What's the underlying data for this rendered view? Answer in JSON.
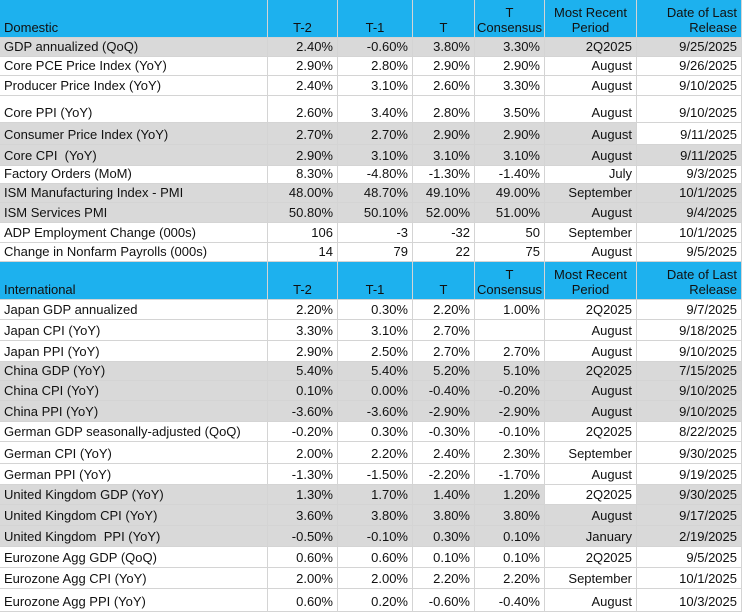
{
  "sections": [
    {
      "header": [
        "Domestic",
        "T-2",
        "T-1",
        "T",
        "T Consensus",
        "Most Recent Period",
        "Date of Last Release"
      ],
      "rows": [
        [
          "GDP annualized (QoQ)",
          "2.40%",
          "-0.60%",
          "3.80%",
          "3.30%",
          "2Q2025",
          "9/25/2025"
        ],
        [
          "Core PCE Price Index (YoY)",
          "2.90%",
          "2.80%",
          "2.90%",
          "2.90%",
          "August",
          "9/26/2025"
        ],
        [
          "Producer Price Index (YoY)",
          "2.40%",
          "3.10%",
          "2.60%",
          "3.30%",
          "August",
          "9/10/2025"
        ],
        [
          "Core PPI (YoY)",
          "2.60%",
          "3.40%",
          "2.80%",
          "3.50%",
          "August",
          "9/10/2025"
        ],
        [
          "Consumer Price Index (YoY)",
          "2.70%",
          "2.70%",
          "2.90%",
          "2.90%",
          "August",
          "9/11/2025"
        ],
        [
          "Core CPI  (YoY)",
          "2.90%",
          "3.10%",
          "3.10%",
          "3.10%",
          "August",
          "9/11/2025"
        ],
        [
          "Factory Orders (MoM)",
          "8.30%",
          "-4.80%",
          "-1.30%",
          "-1.40%",
          "July",
          "9/3/2025"
        ],
        [
          "ISM Manufacturing Index - PMI",
          "48.00%",
          "48.70%",
          "49.10%",
          "49.00%",
          "September",
          "10/1/2025"
        ],
        [
          "ISM Services PMI",
          "50.80%",
          "50.10%",
          "52.00%",
          "51.00%",
          "August",
          "9/4/2025"
        ],
        [
          "ADP Employment Change (000s)",
          "106",
          "-3",
          "-32",
          "50",
          "September",
          "10/1/2025"
        ],
        [
          "Change in Nonfarm Payrolls (000s)",
          "14",
          "79",
          "22",
          "75",
          "August",
          "9/5/2025"
        ]
      ]
    },
    {
      "header": [
        "International",
        "T-2",
        "T-1",
        "T",
        "T Consensus",
        "Most Recent Period",
        "Date of Last Release"
      ],
      "rows": [
        [
          "Japan GDP annualized",
          "2.20%",
          "0.30%",
          "2.20%",
          "1.00%",
          "2Q2025",
          "9/7/2025"
        ],
        [
          "Japan CPI (YoY)",
          "3.30%",
          "3.10%",
          "2.70%",
          null,
          "August",
          "9/18/2025"
        ],
        [
          "Japan PPI (YoY)",
          "2.90%",
          "2.50%",
          "2.70%",
          "2.70%",
          "August",
          "9/10/2025"
        ],
        [
          "China GDP (YoY)",
          "5.40%",
          "5.40%",
          "5.20%",
          "5.10%",
          "2Q2025",
          "7/15/2025"
        ],
        [
          "China CPI (YoY)",
          "0.10%",
          "0.00%",
          "-0.40%",
          "-0.20%",
          "August",
          "9/10/2025"
        ],
        [
          "China PPI (YoY)",
          "-3.60%",
          "-3.60%",
          "-2.90%",
          "-2.90%",
          "August",
          "9/10/2025"
        ],
        [
          "German GDP seasonally-adjusted (QoQ)",
          "-0.20%",
          "0.30%",
          "-0.30%",
          "-0.10%",
          "2Q2025",
          "8/22/2025"
        ],
        [
          "German CPI (YoY)",
          "2.00%",
          "2.20%",
          "2.40%",
          "2.30%",
          "September",
          "9/30/2025"
        ],
        [
          "German PPI (YoY)",
          "-1.30%",
          "-1.50%",
          "-2.20%",
          "-1.70%",
          "August",
          "9/19/2025"
        ],
        [
          "United Kingdom GDP (YoY)",
          "1.30%",
          "1.70%",
          "1.40%",
          "1.20%",
          "2Q2025",
          "9/30/2025"
        ],
        [
          "United Kingdom CPI (YoY)",
          "3.60%",
          "3.80%",
          "3.80%",
          "3.80%",
          "August",
          "9/17/2025"
        ],
        [
          "United Kingdom  PPI (YoY)",
          "-0.50%",
          "-0.10%",
          "0.30%",
          "0.10%",
          "January",
          "2/19/2025"
        ],
        [
          "Eurozone Agg GDP (QoQ)",
          "0.60%",
          "0.60%",
          "0.10%",
          "0.10%",
          "2Q2025",
          "9/5/2025"
        ],
        [
          "Eurozone Agg CPI (YoY)",
          "2.00%",
          "2.00%",
          "2.20%",
          "2.20%",
          "September",
          "10/1/2025"
        ],
        [
          "Eurozone Agg PPI (YoY)",
          "0.60%",
          "0.20%",
          "-0.60%",
          "-0.40%",
          "August",
          "10/3/2025"
        ]
      ]
    }
  ]
}
